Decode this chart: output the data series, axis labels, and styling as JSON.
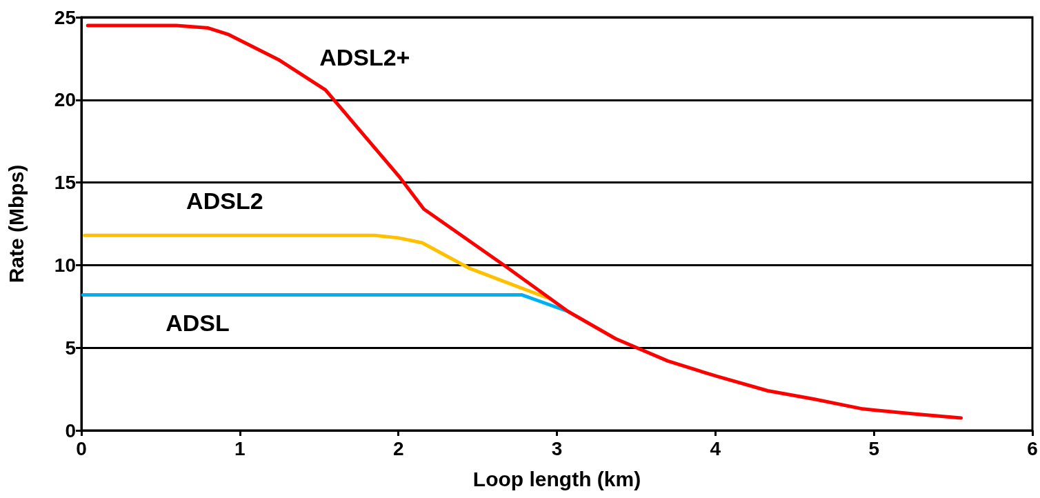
{
  "chart_data": {
    "type": "line",
    "xlabel": "Loop length (km)",
    "ylabel": "Rate (Mbps)",
    "xlim": [
      0,
      6
    ],
    "xticks": [
      0,
      1,
      2,
      3,
      4,
      5,
      6
    ],
    "ylim": [
      0,
      25
    ],
    "yticks": [
      0,
      5,
      10,
      15,
      20,
      25
    ],
    "grid": "y",
    "legend": false,
    "marker": "none",
    "line_style": "solid",
    "series": [
      {
        "name": "ADSL2+",
        "color": "#ff0000",
        "x": [
          0.04,
          0.6,
          0.8,
          0.93,
          1.25,
          1.54,
          2.01,
          2.16,
          2.68,
          3.07,
          3.37,
          3.7,
          4.0,
          4.33,
          4.62,
          4.93,
          5.25,
          5.55
        ],
        "values": [
          24.5,
          24.5,
          24.35,
          23.95,
          22.4,
          20.6,
          15.3,
          13.4,
          9.9,
          7.2,
          5.55,
          4.2,
          3.3,
          2.4,
          1.9,
          1.3,
          1.0,
          0.75
        ]
      },
      {
        "name": "ADSL2",
        "color": "#ffc000",
        "x": [
          0.02,
          1.85,
          2.0,
          2.15,
          2.45,
          2.71,
          2.96
        ],
        "values": [
          11.8,
          11.8,
          11.65,
          11.35,
          9.8,
          8.85,
          7.95
        ]
      },
      {
        "name": "ADSL",
        "color": "#00b0f0",
        "x": [
          0.01,
          2.78,
          3.07
        ],
        "values": [
          8.2,
          8.2,
          7.2
        ]
      }
    ]
  }
}
